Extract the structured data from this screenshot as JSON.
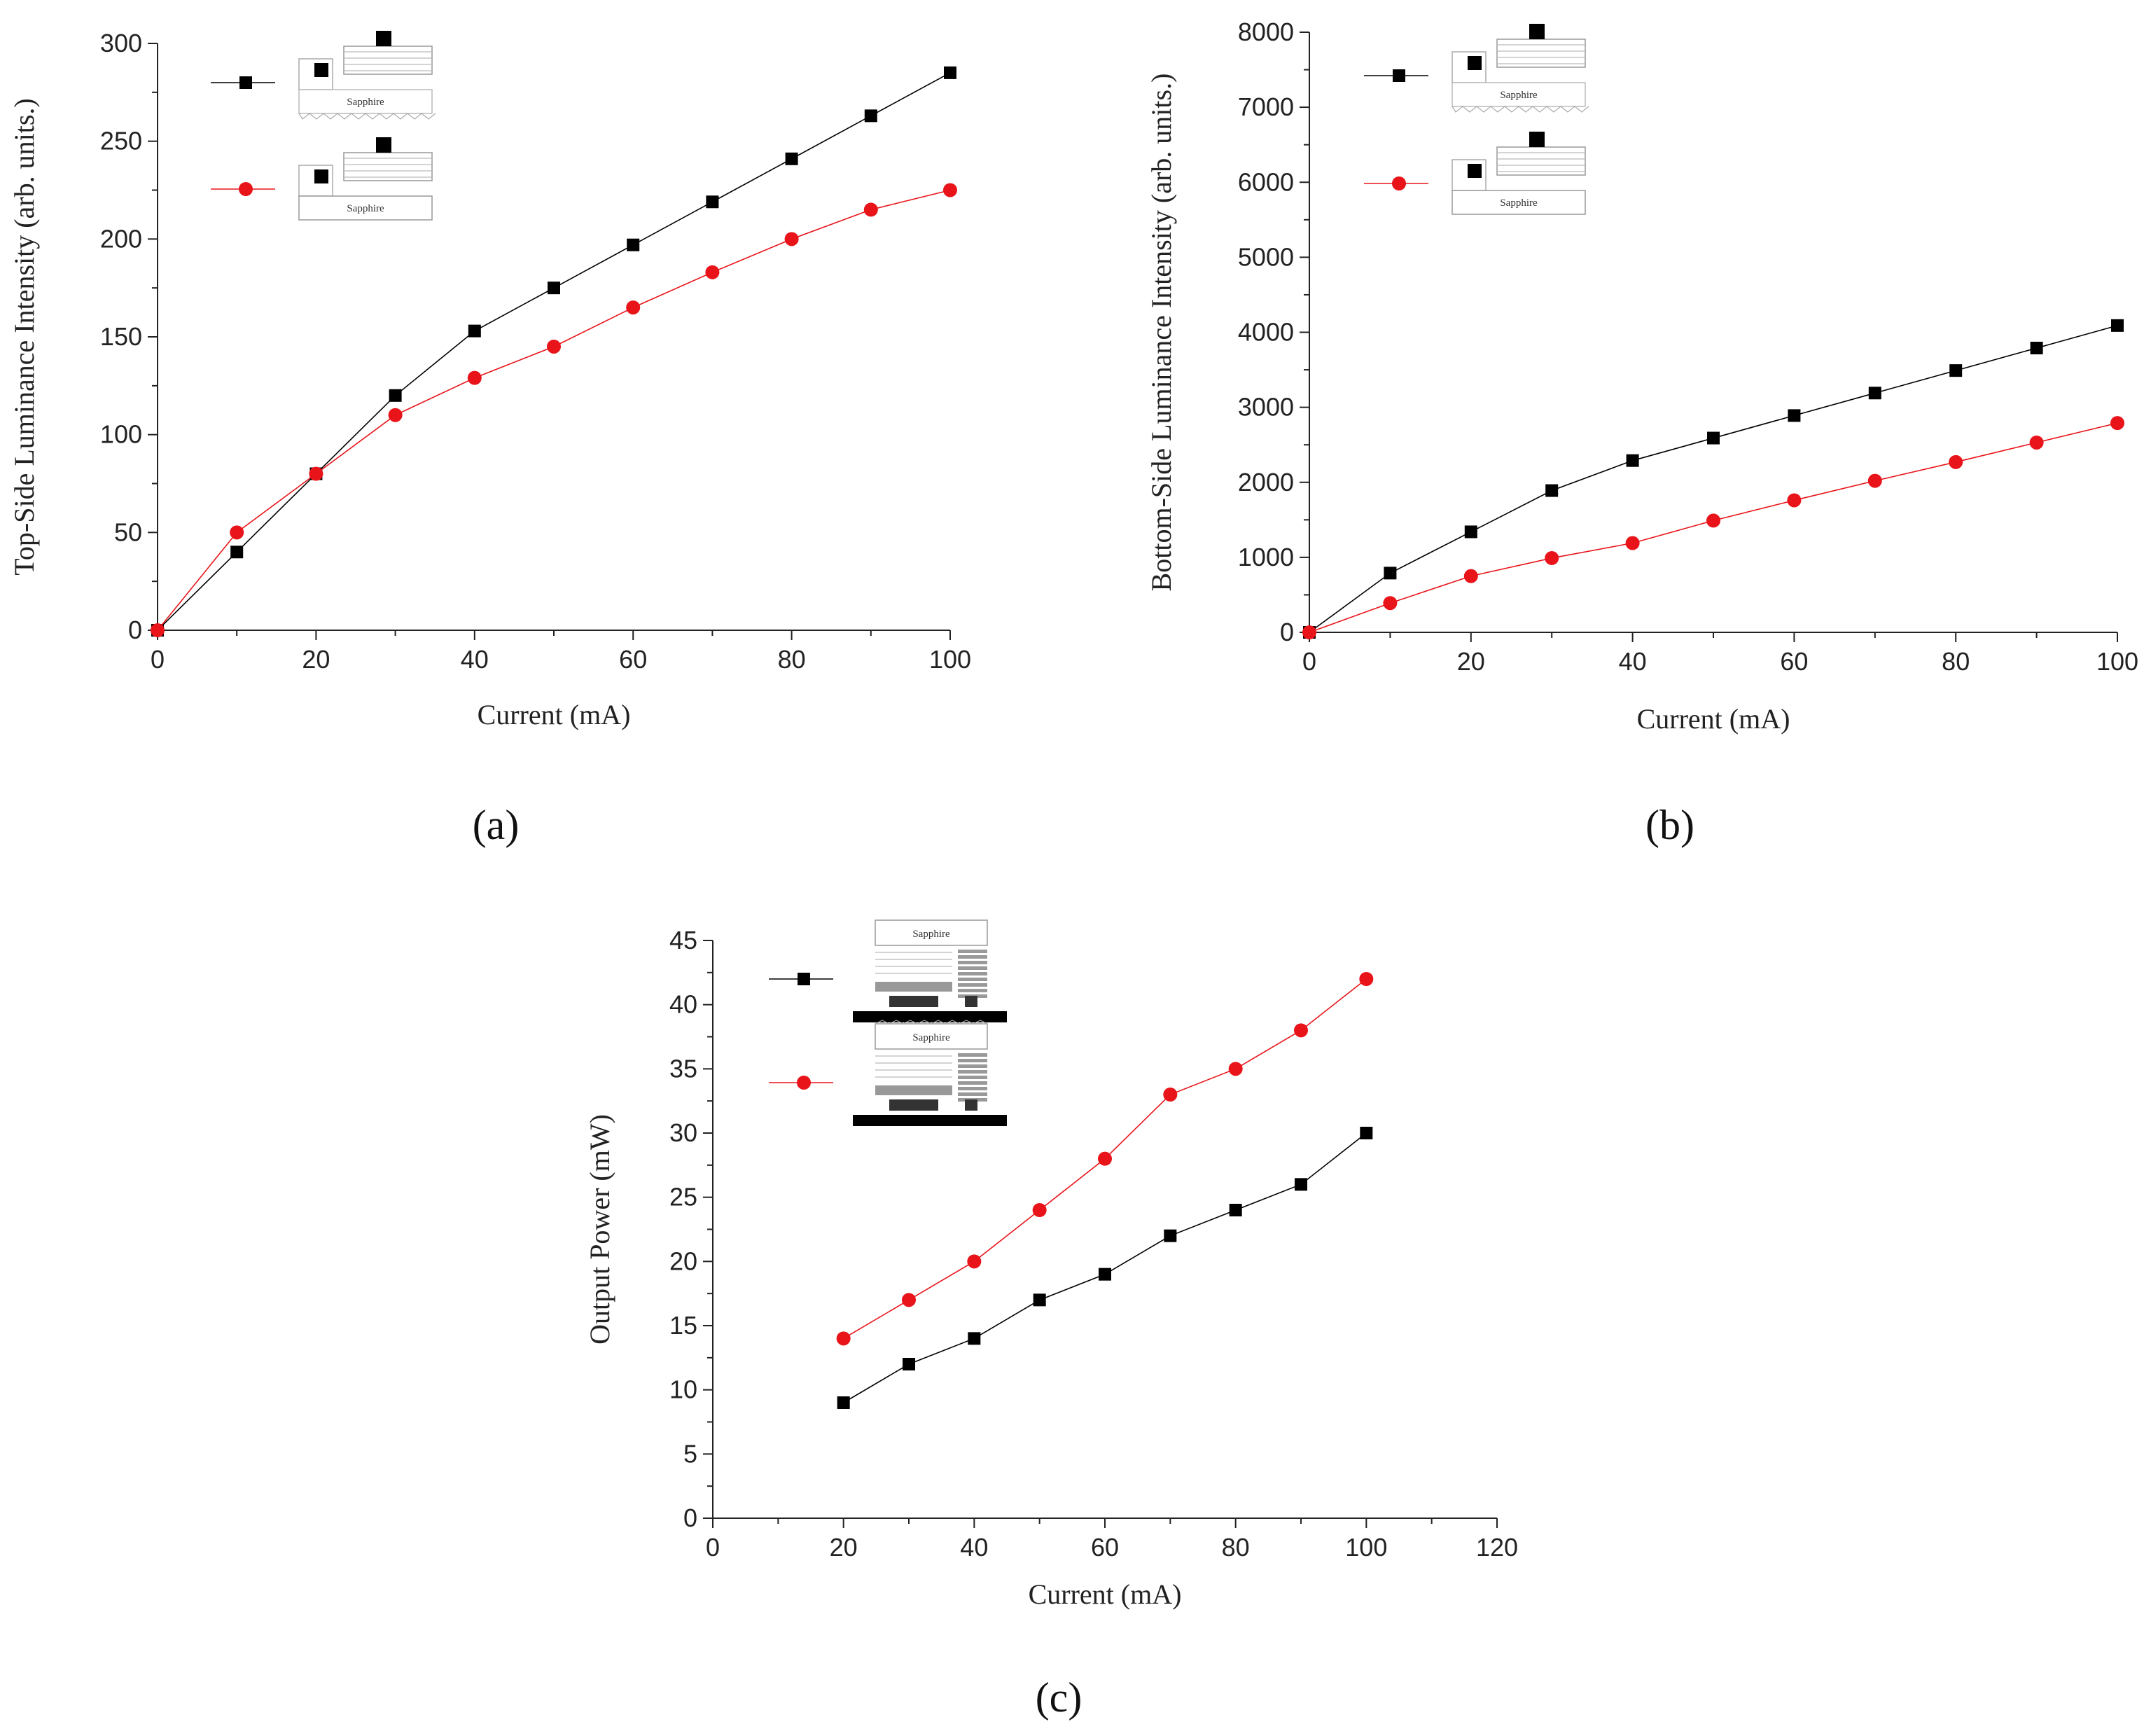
{
  "colors": {
    "series_black": "#000000",
    "series_red": "#e8141a",
    "axis": "#222222"
  },
  "legend_substrate_label": "Sapphire",
  "chart_data": [
    {
      "id": "a",
      "panel_label": "(a)",
      "type": "line",
      "xlabel": "Current (mA)",
      "ylabel": "Top-Side Luminance Intensity (arb. units.)",
      "xlim": [
        0,
        100
      ],
      "ylim": [
        0,
        300
      ],
      "xticks": [
        0,
        20,
        40,
        60,
        80,
        100
      ],
      "yticks": [
        0,
        50,
        100,
        150,
        200,
        250,
        300
      ],
      "x": [
        0,
        10,
        20,
        30,
        40,
        50,
        60,
        70,
        80,
        90,
        100
      ],
      "series": [
        {
          "name": "black-square",
          "color": "#000000",
          "marker": "square",
          "values": [
            0,
            40,
            80,
            120,
            153,
            175,
            197,
            219,
            241,
            263,
            285
          ]
        },
        {
          "name": "red-circle",
          "color": "#e8141a",
          "marker": "circle",
          "values": [
            0,
            50,
            80,
            110,
            129,
            145,
            165,
            183,
            200,
            215,
            225
          ]
        }
      ]
    },
    {
      "id": "b",
      "panel_label": "(b)",
      "type": "line",
      "xlabel": "Current (mA)",
      "ylabel": "Bottom-Side Luminance Intensity (arb. units.)",
      "xlim": [
        0,
        100
      ],
      "ylim": [
        0,
        8000
      ],
      "xticks": [
        0,
        20,
        40,
        60,
        80,
        100
      ],
      "yticks": [
        0,
        1000,
        2000,
        3000,
        4000,
        5000,
        6000,
        7000,
        8000
      ],
      "x": [
        0,
        10,
        20,
        30,
        40,
        50,
        60,
        70,
        80,
        90,
        100
      ],
      "series": [
        {
          "name": "black-square",
          "color": "#000000",
          "marker": "square",
          "values": [
            0,
            790,
            1340,
            1890,
            2290,
            2590,
            2890,
            3190,
            3490,
            3790,
            4090
          ]
        },
        {
          "name": "red-circle",
          "color": "#e8141a",
          "marker": "circle",
          "values": [
            0,
            390,
            750,
            990,
            1190,
            1490,
            1760,
            2020,
            2270,
            2530,
            2790
          ]
        }
      ]
    },
    {
      "id": "c",
      "panel_label": "(c)",
      "type": "line",
      "xlabel": "Current (mA)",
      "ylabel": "Output Power (mW)",
      "xlim": [
        0,
        120
      ],
      "ylim": [
        0,
        45
      ],
      "xticks": [
        0,
        20,
        40,
        60,
        80,
        100,
        120
      ],
      "yticks": [
        0,
        5,
        10,
        15,
        20,
        25,
        30,
        35,
        40,
        45
      ],
      "x": [
        20,
        30,
        40,
        50,
        60,
        70,
        80,
        90,
        100
      ],
      "series": [
        {
          "name": "black-square",
          "color": "#000000",
          "marker": "square",
          "values": [
            9,
            12,
            14,
            17,
            19,
            22,
            24,
            26,
            30
          ]
        },
        {
          "name": "red-circle",
          "color": "#e8141a",
          "marker": "circle",
          "values": [
            14,
            17,
            20,
            24,
            28,
            33,
            35,
            38,
            42
          ]
        }
      ]
    }
  ]
}
